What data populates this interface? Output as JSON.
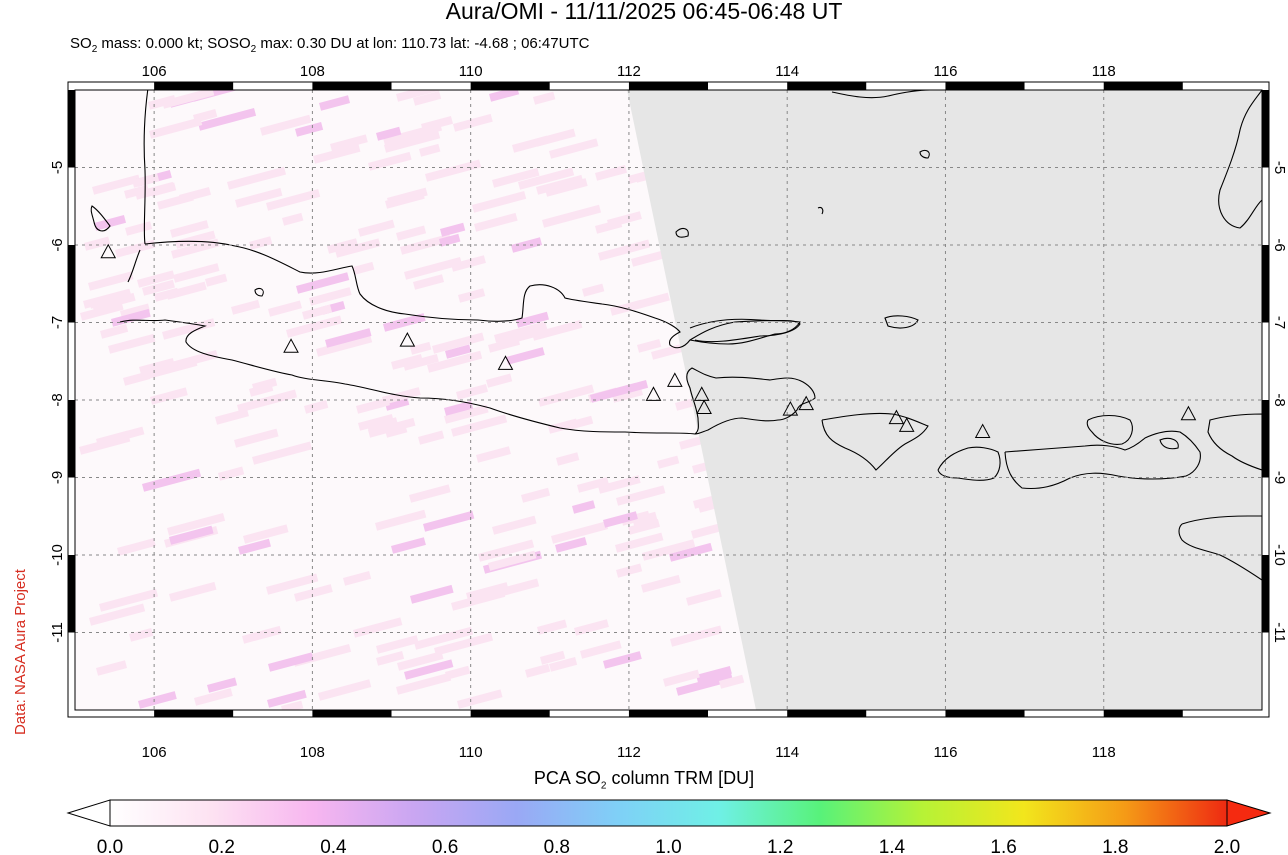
{
  "title": "Aura/OMI - 11/11/2025 06:45-06:48 UT",
  "subtitle": {
    "so2_mass": "SO",
    "mass_rest": " mass: 0.000 kt; SO",
    "max_rest": " max: 0.30 DU at lon: 110.73 lat: -4.68 ; 06:47UTC"
  },
  "credit": "Data: NASA Aura Project",
  "map": {
    "lon_range": [
      105,
      120
    ],
    "lat_range": [
      -12,
      -4
    ],
    "lon_ticks": [
      "106",
      "108",
      "110",
      "112",
      "114",
      "116",
      "118"
    ],
    "lat_ticks": [
      "-5",
      "-6",
      "-7",
      "-8",
      "-9",
      "-10",
      "-11"
    ],
    "no_data_color": "#e6e6e6",
    "volcanoes": [
      {
        "lon": 105.42,
        "lat": -6.1
      },
      {
        "lon": 107.73,
        "lat": -7.32
      },
      {
        "lon": 109.2,
        "lat": -7.24
      },
      {
        "lon": 110.44,
        "lat": -7.54
      },
      {
        "lon": 112.31,
        "lat": -7.94
      },
      {
        "lon": 112.58,
        "lat": -7.76
      },
      {
        "lon": 112.92,
        "lat": -7.94
      },
      {
        "lon": 112.95,
        "lat": -8.11
      },
      {
        "lon": 114.04,
        "lat": -8.13
      },
      {
        "lon": 114.24,
        "lat": -8.06
      },
      {
        "lon": 115.38,
        "lat": -8.24
      },
      {
        "lon": 115.51,
        "lat": -8.34
      },
      {
        "lon": 116.47,
        "lat": -8.42
      },
      {
        "lon": 119.07,
        "lat": -8.19
      }
    ]
  },
  "colorbar": {
    "title_prefix": "PCA SO",
    "title_suffix": " column TRM [DU]",
    "sub": "2",
    "ticks": [
      "0.0",
      "0.2",
      "0.4",
      "0.6",
      "0.8",
      "1.0",
      "1.2",
      "1.4",
      "1.6",
      "1.8",
      "2.0"
    ],
    "colors": [
      "#ffffff",
      "#fde2f2",
      "#f7b6f0",
      "#c9a6f2",
      "#9aa8f5",
      "#7fd0f7",
      "#6ff0e6",
      "#58f27a",
      "#b6f236",
      "#f2e61c",
      "#f59a16",
      "#ee2a12"
    ]
  }
}
